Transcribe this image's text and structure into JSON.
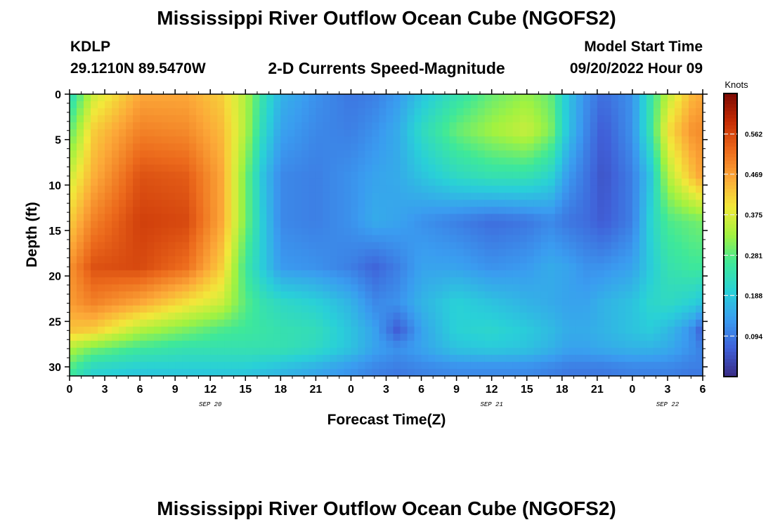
{
  "header": {
    "title": "Mississippi River Outflow Ocean Cube (NGOFS2)",
    "station": "KDLP",
    "coords": "29.1210N  89.5470W",
    "product": "2-D Currents Speed-Magnitude",
    "model_start_label": "Model Start Time",
    "model_start_value": "09/20/2022 Hour 09"
  },
  "footer": {
    "title": "Mississippi River Outflow Ocean Cube (NGOFS2)"
  },
  "colors": {
    "colormap": [
      "#3a2c84",
      "#4060d8",
      "#3a9cf0",
      "#29d0d8",
      "#3ee89a",
      "#a2f240",
      "#f2e83a",
      "#fca838",
      "#ec6a1c",
      "#c42c04",
      "#7c0a04"
    ]
  },
  "chart_data": {
    "type": "heatmap",
    "title": "2-D Currents Speed-Magnitude",
    "xlabel": "Forecast Time(Z)",
    "ylabel": "Depth (ft)",
    "x_range_hours": [
      0,
      54
    ],
    "y_range_ft": [
      0,
      31
    ],
    "y_ticks": [
      0,
      5,
      10,
      15,
      20,
      25,
      30
    ],
    "x_tick_labels": [
      "0",
      "3",
      "6",
      "9",
      "12",
      "15",
      "18",
      "21",
      "0",
      "3",
      "6",
      "9",
      "12",
      "15",
      "18",
      "21",
      "0",
      "3",
      "6"
    ],
    "date_labels": [
      {
        "hour": 12,
        "text": "SEP 20"
      },
      {
        "hour": 36,
        "text": "SEP 21"
      },
      {
        "hour": 51,
        "text": "SEP 22"
      }
    ],
    "colorbar": {
      "label": "Knots",
      "range": [
        0,
        0.656
      ],
      "ticks": [
        0.094,
        0.188,
        0.281,
        0.375,
        0.469,
        0.562
      ]
    },
    "grid": false,
    "anchors_description": "speed (knots) at time (hours from 09/20 00Z) and depth (ft)",
    "x_hours": [
      0,
      2,
      6,
      10,
      13,
      15,
      16.5,
      18,
      21,
      24,
      26,
      28,
      30,
      33,
      36,
      39,
      41,
      42.5,
      44,
      45.5,
      48,
      49.5,
      51,
      53,
      54
    ],
    "depths_ft": [
      0,
      4,
      9,
      14,
      19,
      23,
      26,
      28,
      30,
      31
    ],
    "speed": [
      [
        0.22,
        0.36,
        0.46,
        0.46,
        0.42,
        0.34,
        0.24,
        0.16,
        0.12,
        0.09,
        0.1,
        0.13,
        0.18,
        0.24,
        0.29,
        0.32,
        0.29,
        0.18,
        0.12,
        0.08,
        0.12,
        0.24,
        0.35,
        0.44,
        0.46
      ],
      [
        0.28,
        0.42,
        0.5,
        0.49,
        0.44,
        0.34,
        0.22,
        0.14,
        0.11,
        0.1,
        0.12,
        0.15,
        0.22,
        0.29,
        0.33,
        0.36,
        0.31,
        0.18,
        0.11,
        0.06,
        0.12,
        0.24,
        0.4,
        0.48,
        0.49
      ],
      [
        0.36,
        0.45,
        0.55,
        0.54,
        0.46,
        0.3,
        0.18,
        0.11,
        0.1,
        0.12,
        0.14,
        0.15,
        0.18,
        0.22,
        0.24,
        0.24,
        0.21,
        0.13,
        0.09,
        0.05,
        0.1,
        0.18,
        0.34,
        0.43,
        0.47
      ],
      [
        0.42,
        0.5,
        0.57,
        0.56,
        0.46,
        0.3,
        0.19,
        0.11,
        0.1,
        0.12,
        0.15,
        0.14,
        0.12,
        0.1,
        0.08,
        0.09,
        0.11,
        0.09,
        0.08,
        0.06,
        0.1,
        0.2,
        0.27,
        0.29,
        0.3
      ],
      [
        0.48,
        0.55,
        0.56,
        0.52,
        0.42,
        0.26,
        0.19,
        0.13,
        0.12,
        0.1,
        0.07,
        0.1,
        0.14,
        0.14,
        0.12,
        0.13,
        0.15,
        0.14,
        0.12,
        0.12,
        0.14,
        0.19,
        0.24,
        0.26,
        0.26
      ],
      [
        0.47,
        0.5,
        0.46,
        0.4,
        0.36,
        0.28,
        0.24,
        0.22,
        0.2,
        0.16,
        0.11,
        0.12,
        0.16,
        0.2,
        0.18,
        0.16,
        0.15,
        0.14,
        0.14,
        0.16,
        0.18,
        0.21,
        0.22,
        0.2,
        0.18
      ],
      [
        0.43,
        0.42,
        0.34,
        0.3,
        0.27,
        0.26,
        0.25,
        0.24,
        0.23,
        0.18,
        0.14,
        0.06,
        0.14,
        0.2,
        0.21,
        0.19,
        0.17,
        0.15,
        0.15,
        0.16,
        0.18,
        0.19,
        0.17,
        0.12,
        0.06
      ],
      [
        0.34,
        0.3,
        0.26,
        0.24,
        0.24,
        0.24,
        0.24,
        0.24,
        0.22,
        0.18,
        0.14,
        0.12,
        0.14,
        0.18,
        0.19,
        0.18,
        0.16,
        0.14,
        0.14,
        0.15,
        0.16,
        0.16,
        0.15,
        0.12,
        0.1
      ],
      [
        0.28,
        0.22,
        0.2,
        0.2,
        0.2,
        0.2,
        0.19,
        0.18,
        0.16,
        0.13,
        0.11,
        0.1,
        0.11,
        0.12,
        0.12,
        0.12,
        0.11,
        0.1,
        0.1,
        0.1,
        0.11,
        0.11,
        0.11,
        0.1,
        0.1
      ],
      [
        0.26,
        0.2,
        0.18,
        0.18,
        0.18,
        0.18,
        0.17,
        0.16,
        0.14,
        0.12,
        0.1,
        0.09,
        0.1,
        0.11,
        0.11,
        0.11,
        0.1,
        0.09,
        0.09,
        0.09,
        0.1,
        0.1,
        0.1,
        0.09,
        0.09
      ]
    ]
  }
}
